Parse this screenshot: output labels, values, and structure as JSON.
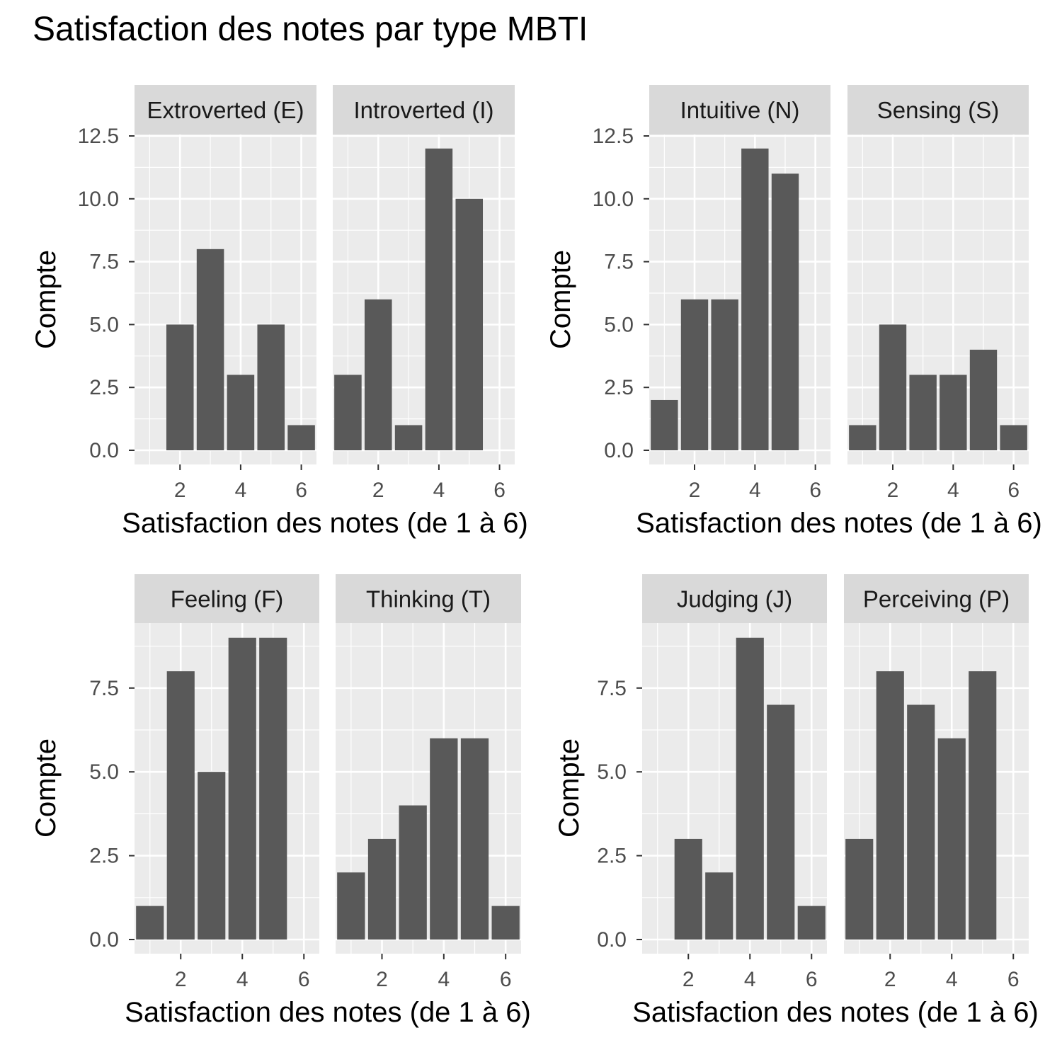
{
  "page": {
    "title": "Satisfaction des notes par type MBTI"
  },
  "colors": {
    "panel_background": "#EBEBEB",
    "strip_background": "#D9D9D9",
    "grid_major": "#FFFFFF",
    "bar_fill": "#595959",
    "tick_text": "#4D4D4D",
    "axis_title_text": "#000000",
    "strip_text": "#1A1A1A"
  },
  "chart_data": [
    {
      "type": "bar",
      "xlabel": "Satisfaction des notes (de 1 à 6)",
      "ylabel": "Compte",
      "x_ticks": [
        2,
        4,
        6
      ],
      "y_ticks": [
        "0.0",
        "2.5",
        "5.0",
        "7.5",
        "10.0",
        "12.5"
      ],
      "xlim": [
        0.5,
        6.5
      ],
      "ylim": [
        0,
        12.5
      ],
      "categories": [
        1,
        2,
        3,
        4,
        5,
        6
      ],
      "series": [
        {
          "name": "Extroverted (E)",
          "values": [
            0,
            5,
            8,
            3,
            5,
            1
          ]
        },
        {
          "name": "Introverted (I)",
          "values": [
            3,
            6,
            1,
            12,
            10,
            0
          ]
        }
      ]
    },
    {
      "type": "bar",
      "xlabel": "Satisfaction des notes (de 1 à 6)",
      "ylabel": "Compte",
      "x_ticks": [
        2,
        4,
        6
      ],
      "y_ticks": [
        "0.0",
        "2.5",
        "5.0",
        "7.5",
        "10.0",
        "12.5"
      ],
      "xlim": [
        0.5,
        6.5
      ],
      "ylim": [
        0,
        12.5
      ],
      "categories": [
        1,
        2,
        3,
        4,
        5,
        6
      ],
      "series": [
        {
          "name": "Intuitive (N)",
          "values": [
            2,
            6,
            6,
            12,
            11,
            0
          ]
        },
        {
          "name": "Sensing (S)",
          "values": [
            1,
            5,
            3,
            3,
            4,
            1
          ]
        }
      ]
    },
    {
      "type": "bar",
      "xlabel": "Satisfaction des notes (de 1 à 6)",
      "ylabel": "Compte",
      "x_ticks": [
        2,
        4,
        6
      ],
      "y_ticks": [
        "0.0",
        "2.5",
        "5.0",
        "7.5"
      ],
      "xlim": [
        0.5,
        6.5
      ],
      "ylim": [
        0,
        9
      ],
      "categories": [
        1,
        2,
        3,
        4,
        5,
        6
      ],
      "series": [
        {
          "name": "Feeling (F)",
          "values": [
            1,
            8,
            5,
            9,
            9,
            0
          ]
        },
        {
          "name": "Thinking (T)",
          "values": [
            2,
            3,
            4,
            6,
            6,
            1
          ]
        }
      ]
    },
    {
      "type": "bar",
      "xlabel": "Satisfaction des notes (de 1 à 6)",
      "ylabel": "Compte",
      "x_ticks": [
        2,
        4,
        6
      ],
      "y_ticks": [
        "0.0",
        "2.5",
        "5.0",
        "7.5"
      ],
      "xlim": [
        0.5,
        6.5
      ],
      "ylim": [
        0,
        9
      ],
      "categories": [
        1,
        2,
        3,
        4,
        5,
        6
      ],
      "series": [
        {
          "name": "Judging (J)",
          "values": [
            0,
            3,
            2,
            9,
            7,
            1
          ]
        },
        {
          "name": "Perceiving (P)",
          "values": [
            3,
            8,
            7,
            6,
            8,
            0
          ]
        }
      ]
    }
  ]
}
